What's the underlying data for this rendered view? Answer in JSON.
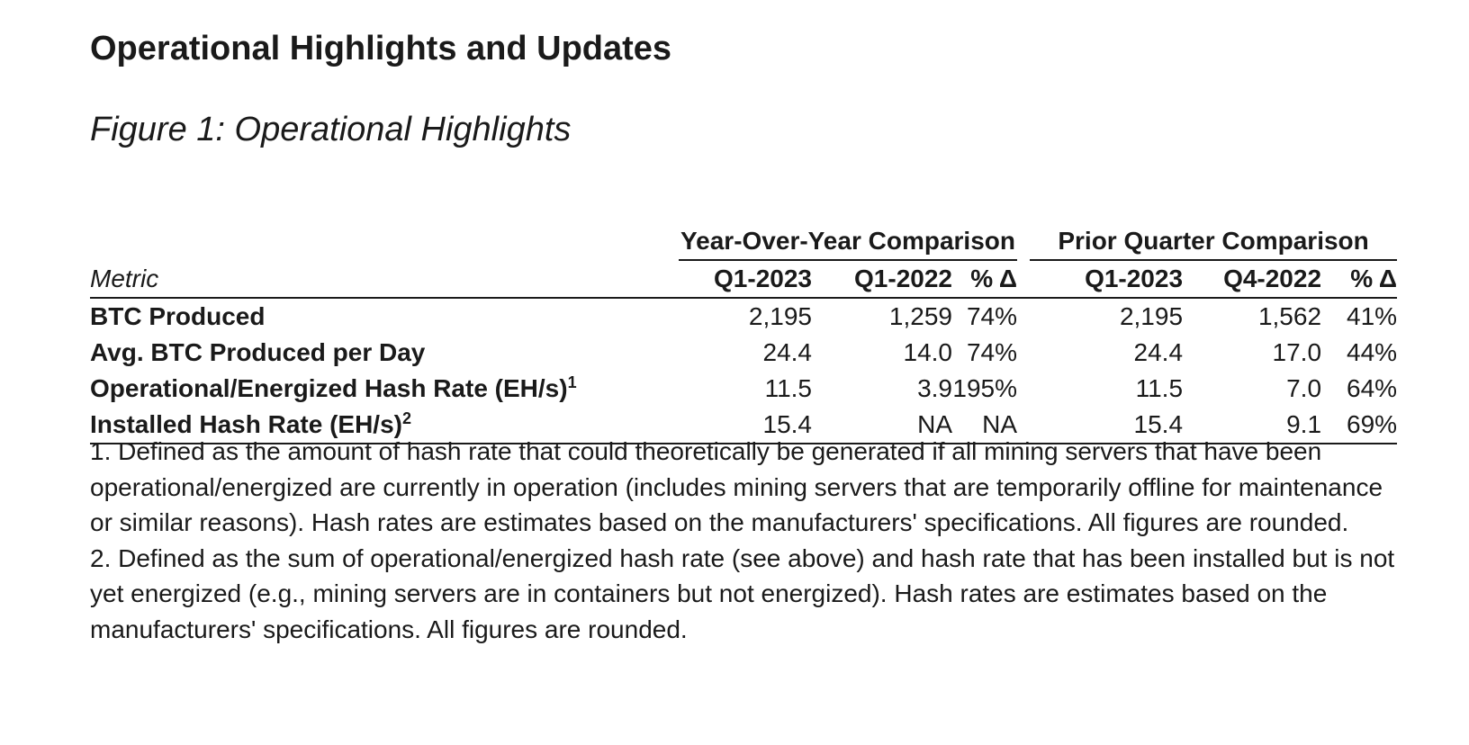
{
  "heading": "Operational Highlights and Updates",
  "figure_title": "Figure 1: Operational Highlights",
  "table": {
    "group_headers": {
      "yoy": "Year-Over-Year Comparison",
      "prior": "Prior Quarter Comparison"
    },
    "columns": {
      "metric": "Metric",
      "yoy_current": "Q1-2023",
      "yoy_prior": "Q1-2022",
      "yoy_change": "% Δ",
      "pq_current": "Q1-2023",
      "pq_prior": "Q4-2022",
      "pq_change": "% Δ"
    },
    "rows": [
      {
        "metric": "BTC Produced",
        "sup": "",
        "yoy_current": "2,195",
        "yoy_prior": "1,259",
        "yoy_change": "74%",
        "pq_current": "2,195",
        "pq_prior": "1,562",
        "pq_change": "41%"
      },
      {
        "metric": "Avg. BTC Produced per Day",
        "sup": "",
        "yoy_current": "24.4",
        "yoy_prior": "14.0",
        "yoy_change": "74%",
        "pq_current": "24.4",
        "pq_prior": "17.0",
        "pq_change": "44%"
      },
      {
        "metric": "Operational/Energized Hash Rate (EH/s)",
        "sup": "1",
        "yoy_current": "11.5",
        "yoy_prior": "3.9",
        "yoy_change": "195%",
        "pq_current": "11.5",
        "pq_prior": "7.0",
        "pq_change": "64%"
      },
      {
        "metric": "Installed Hash Rate (EH/s)",
        "sup": "2",
        "yoy_current": "15.4",
        "yoy_prior": "NA",
        "yoy_change": "NA",
        "pq_current": "15.4",
        "pq_prior": "9.1",
        "pq_change": "69%"
      }
    ]
  },
  "footnotes": [
    "1. Defined as the amount of hash rate that could theoretically be generated if all mining servers that have been operational/energized are currently in operation (includes mining servers that are temporarily offline for maintenance or similar reasons). Hash rates are estimates based on the manufacturers' specifications. All figures are rounded.",
    " 2. Defined as the sum of operational/energized hash rate (see above) and hash rate that has been installed but is not yet energized (e.g., mining servers are in containers but not energized). Hash rates are estimates based on the manufacturers' specifications. All figures are rounded."
  ]
}
